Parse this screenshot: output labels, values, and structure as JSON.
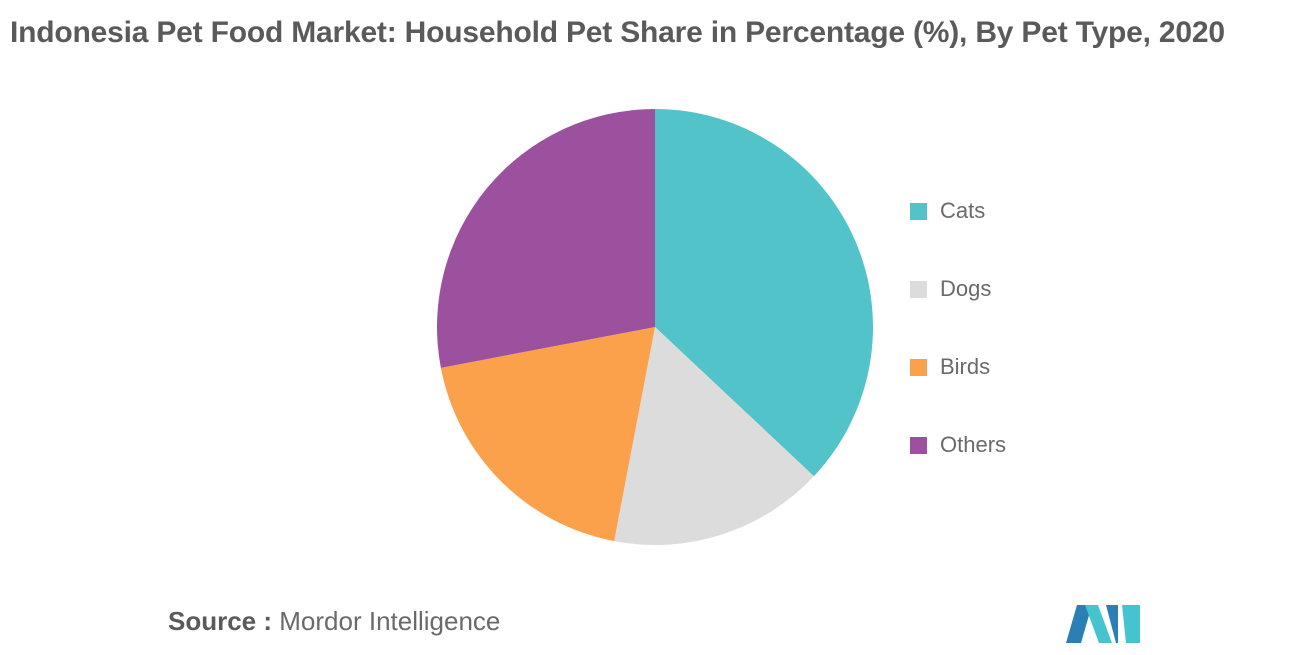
{
  "chart_data": {
    "type": "pie",
    "title": "Indonesia Pet Food Market: Household Pet Share in Percentage (%), By Pet Type, 2020",
    "categories": [
      "Cats",
      "Dogs",
      "Birds",
      "Others"
    ],
    "values": [
      37,
      16,
      19,
      28
    ],
    "colors": [
      "#52c3c8",
      "#dcdcdc",
      "#fba14b",
      "#9b519d"
    ],
    "legend_position": "right"
  },
  "source": {
    "label": "Source :",
    "text": "Mordor Intelligence"
  },
  "logo": {
    "icon": "mordor-intelligence-logo-icon",
    "colors": [
      "#2a7fb5",
      "#45c4d0"
    ]
  }
}
